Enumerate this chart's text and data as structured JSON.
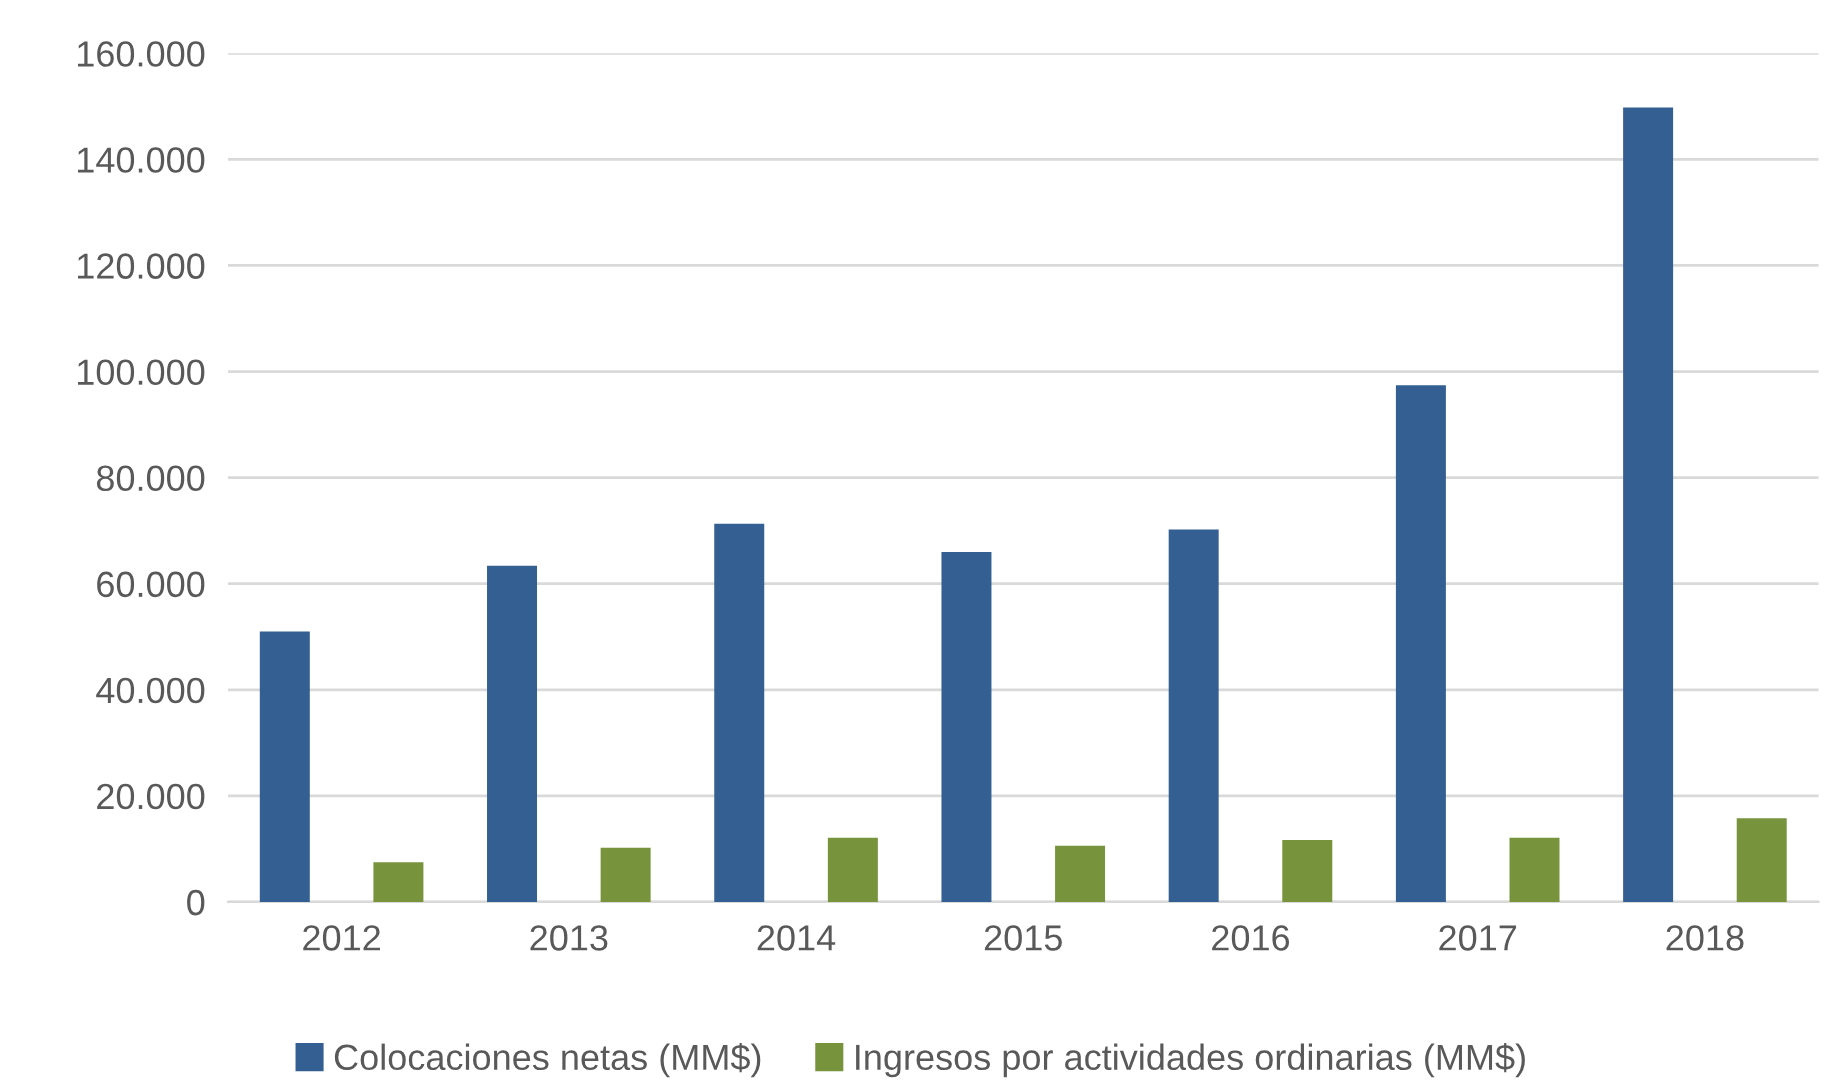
{
  "chart_data": {
    "type": "bar",
    "categories": [
      "2012",
      "2013",
      "2014",
      "2015",
      "2016",
      "2017",
      "2018"
    ],
    "series": [
      {
        "name": "Colocaciones netas (MM$)",
        "color": "#335f92",
        "values": [
          51000,
          63400,
          71300,
          66000,
          70200,
          97400,
          149800
        ]
      },
      {
        "name": "Ingresos por actividades ordinarias (MM$)",
        "color": "#77933c",
        "values": [
          7500,
          10200,
          12100,
          10600,
          11700,
          12100,
          15800
        ]
      }
    ],
    "ylim": [
      0,
      160000
    ],
    "yticks": [
      0,
      {
        "value": 20000,
        "label": "20.000"
      },
      {
        "value": 40000,
        "label": "40.000"
      },
      {
        "value": 60000,
        "label": "60.000"
      },
      {
        "value": 80000,
        "label": "80.000"
      },
      {
        "value": 100000,
        "label": "100.000"
      },
      {
        "value": 120000,
        "label": "120.000"
      },
      {
        "value": 140000,
        "label": "140.000"
      },
      {
        "value": 160000,
        "label": "160.000"
      }
    ],
    "grid": "y",
    "legend": "bottom"
  }
}
